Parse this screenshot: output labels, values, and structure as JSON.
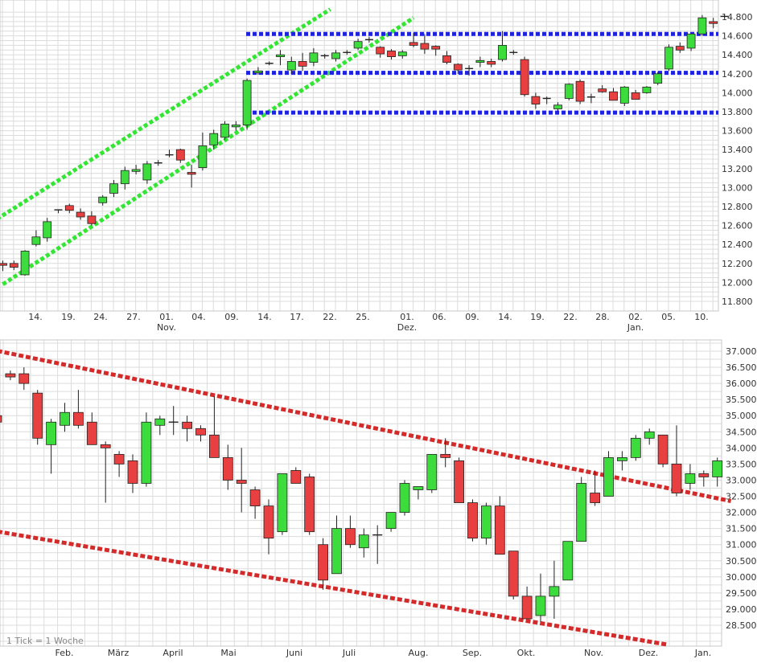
{
  "colors": {
    "up": "#3ddc3d",
    "down": "#e84040",
    "green_line": "#33e633",
    "blue_line": "#1f22e0",
    "red_line": "#d42a2a",
    "grid": "#dcdcdc"
  },
  "chart_data": [
    {
      "type": "candlestick",
      "title": "",
      "ylim": [
        11700,
        14900
      ],
      "y_ticks": [
        "11.800",
        "12.000",
        "12.200",
        "12.400",
        "12.600",
        "12.800",
        "13.000",
        "13.200",
        "13.400",
        "13.600",
        "13.800",
        "14.000",
        "14.200",
        "14.400",
        "14.600",
        "14.800"
      ],
      "day_labels": [
        "14.",
        "19.",
        "24.",
        "27.",
        "01.",
        "04.",
        "09.",
        "14.",
        "17.",
        "22.",
        "25.",
        "01.",
        "06.",
        "09.",
        "14.",
        "19.",
        "22.",
        "28.",
        "02.",
        "05.",
        "10."
      ],
      "month_labels": [
        "Nov.",
        "Dez.",
        "Jan."
      ],
      "candles": [
        [
          12200,
          12230,
          12120,
          12180
        ],
        [
          12200,
          12230,
          12130,
          12160
        ],
        [
          12080,
          12340,
          12070,
          12330
        ],
        [
          12400,
          12550,
          12380,
          12480
        ],
        [
          12470,
          12680,
          12430,
          12640
        ],
        [
          12760,
          12770,
          12730,
          12770
        ],
        [
          12810,
          12830,
          12730,
          12760
        ],
        [
          12740,
          12780,
          12660,
          12690
        ],
        [
          12700,
          12750,
          12600,
          12620
        ],
        [
          12840,
          12920,
          12810,
          12900
        ],
        [
          12940,
          13080,
          12900,
          13040
        ],
        [
          13040,
          13220,
          12980,
          13180
        ],
        [
          13170,
          13240,
          13140,
          13190
        ],
        [
          13080,
          13280,
          13040,
          13250
        ],
        [
          13260,
          13290,
          13230,
          13260
        ],
        [
          13340,
          13400,
          13320,
          13350
        ],
        [
          13400,
          13410,
          13260,
          13290
        ],
        [
          13160,
          13240,
          13000,
          13140
        ],
        [
          13210,
          13580,
          13180,
          13440
        ],
        [
          13450,
          13610,
          13400,
          13570
        ],
        [
          13530,
          13700,
          13500,
          13670
        ],
        [
          13640,
          13700,
          13600,
          13660
        ],
        [
          13660,
          14150,
          13610,
          14130
        ],
        [
          14210,
          14270,
          14190,
          14230
        ],
        [
          14310,
          14330,
          14290,
          14310
        ],
        [
          14380,
          14450,
          14290,
          14400
        ],
        [
          14240,
          14380,
          14200,
          14330
        ],
        [
          14330,
          14420,
          14230,
          14280
        ],
        [
          14320,
          14470,
          14280,
          14420
        ],
        [
          14390,
          14410,
          14360,
          14390
        ],
        [
          14360,
          14450,
          14330,
          14420
        ],
        [
          14420,
          14450,
          14400,
          14430
        ],
        [
          14470,
          14570,
          14450,
          14540
        ],
        [
          14560,
          14590,
          14530,
          14560
        ],
        [
          14480,
          14490,
          14370,
          14410
        ],
        [
          14440,
          14460,
          14350,
          14380
        ],
        [
          14390,
          14450,
          14360,
          14430
        ],
        [
          14530,
          14630,
          14480,
          14500
        ],
        [
          14520,
          14620,
          14410,
          14460
        ],
        [
          14490,
          14500,
          14390,
          14460
        ],
        [
          14390,
          14440,
          14300,
          14320
        ],
        [
          14300,
          14310,
          14200,
          14240
        ],
        [
          14250,
          14290,
          14180,
          14260
        ],
        [
          14320,
          14380,
          14270,
          14340
        ],
        [
          14330,
          14360,
          14270,
          14300
        ],
        [
          14350,
          14650,
          14330,
          14500
        ],
        [
          14430,
          14450,
          14400,
          14420
        ],
        [
          14350,
          14380,
          13960,
          13980
        ],
        [
          13960,
          14000,
          13830,
          13880
        ],
        [
          13940,
          13960,
          13880,
          13940
        ],
        [
          13830,
          13900,
          13800,
          13870
        ],
        [
          13940,
          14100,
          13920,
          14090
        ],
        [
          14120,
          14140,
          13880,
          13910
        ],
        [
          13950,
          13990,
          13890,
          13960
        ],
        [
          14040,
          14080,
          14000,
          14010
        ],
        [
          14010,
          14050,
          13930,
          13920
        ],
        [
          13890,
          14070,
          13860,
          14060
        ],
        [
          14000,
          14030,
          13940,
          13930
        ],
        [
          14000,
          14070,
          13990,
          14060
        ],
        [
          14100,
          14220,
          14080,
          14200
        ],
        [
          14250,
          14510,
          14230,
          14480
        ],
        [
          14490,
          14530,
          14420,
          14450
        ],
        [
          14470,
          14620,
          14440,
          14620
        ],
        [
          14620,
          14820,
          14600,
          14790
        ],
        [
          14750,
          14790,
          14680,
          14730
        ],
        [
          14800,
          14820,
          14790,
          14810
        ]
      ],
      "lines": {
        "green_upper": [
          [
            -2,
            12560
          ],
          [
            29.5,
            14880
          ]
        ],
        "green_lower": [
          [
            0,
            11980
          ],
          [
            37,
            14790
          ]
        ],
        "blue": [
          14620,
          14210,
          13790
        ]
      }
    },
    {
      "type": "candlestick",
      "title": "",
      "ylim": [
        28000,
        37300
      ],
      "y_ticks": [
        "28.500",
        "29.000",
        "29.500",
        "30.000",
        "30.500",
        "31.000",
        "31.500",
        "32.000",
        "32.500",
        "33.000",
        "33.500",
        "34.000",
        "34.500",
        "35.000",
        "35.500",
        "36.000",
        "36.500",
        "37.000"
      ],
      "month_labels": [
        "Feb.",
        "März",
        "April",
        "Mai",
        "Juni",
        "Juli",
        "Aug.",
        "Sep.",
        "Okt.",
        "Nov.",
        "Dez.",
        "Jan."
      ],
      "note": "1 Tick = 1 Woche",
      "candles": [
        [
          35000,
          35050,
          34700,
          34800
        ],
        [
          36300,
          36400,
          36100,
          36200
        ],
        [
          36300,
          36500,
          35800,
          36000
        ],
        [
          35700,
          35800,
          34100,
          34300
        ],
        [
          34100,
          34900,
          33200,
          34800
        ],
        [
          34700,
          35400,
          34500,
          35100
        ],
        [
          35100,
          35800,
          34600,
          34700
        ],
        [
          34800,
          35100,
          34100,
          34100
        ],
        [
          34100,
          34200,
          32300,
          34000
        ],
        [
          33800,
          33900,
          33100,
          33500
        ],
        [
          33600,
          33800,
          32600,
          32900
        ],
        [
          32900,
          35100,
          32800,
          34800
        ],
        [
          34700,
          35000,
          34400,
          34900
        ],
        [
          34800,
          35300,
          34400,
          34800
        ],
        [
          34800,
          35000,
          34200,
          34600
        ],
        [
          34600,
          34700,
          34200,
          34400
        ],
        [
          34400,
          35600,
          33700,
          33700
        ],
        [
          33700,
          34100,
          32700,
          33000
        ],
        [
          33000,
          34000,
          32000,
          32900
        ],
        [
          32700,
          32800,
          31800,
          32200
        ],
        [
          32200,
          32400,
          30700,
          31200
        ],
        [
          31400,
          33200,
          31300,
          33200
        ],
        [
          33300,
          33400,
          32900,
          32900
        ],
        [
          33100,
          33200,
          31300,
          31400
        ],
        [
          31000,
          31200,
          29600,
          29900
        ],
        [
          30100,
          31900,
          30100,
          31500
        ],
        [
          31500,
          31900,
          30900,
          31000
        ],
        [
          30900,
          31500,
          30600,
          31300
        ],
        [
          31300,
          31600,
          30400,
          31300
        ],
        [
          31500,
          32000,
          31400,
          32000
        ],
        [
          32000,
          33000,
          31900,
          32900
        ],
        [
          32700,
          32800,
          32400,
          32800
        ],
        [
          32700,
          33800,
          32600,
          33800
        ],
        [
          33800,
          34300,
          33400,
          33700
        ],
        [
          33600,
          33700,
          32300,
          32300
        ],
        [
          32300,
          32400,
          31100,
          31200
        ],
        [
          31200,
          32300,
          31000,
          32200
        ],
        [
          32200,
          32500,
          30700,
          30700
        ],
        [
          30800,
          30800,
          29300,
          29400
        ],
        [
          29400,
          29700,
          28700,
          28700
        ],
        [
          28800,
          30100,
          28600,
          29400
        ],
        [
          29400,
          30500,
          28700,
          29700
        ],
        [
          29900,
          31100,
          29900,
          31100
        ],
        [
          31100,
          33100,
          31100,
          32900
        ],
        [
          32600,
          33300,
          32200,
          32300
        ],
        [
          32500,
          33900,
          32500,
          33700
        ],
        [
          33600,
          33900,
          33300,
          33700
        ],
        [
          33700,
          34400,
          33600,
          34300
        ],
        [
          34300,
          34600,
          34100,
          34500
        ],
        [
          34400,
          34400,
          33400,
          33500
        ],
        [
          33500,
          34700,
          32500,
          32600
        ],
        [
          32900,
          33500,
          32700,
          33200
        ],
        [
          33200,
          33300,
          32800,
          33100
        ],
        [
          33100,
          33700,
          32800,
          33600
        ]
      ],
      "lines": {
        "red_upper": [
          [
            -1,
            37100
          ],
          [
            54,
            32350
          ]
        ],
        "red_lower": [
          [
            -1,
            31480
          ],
          [
            49.3,
            27900
          ]
        ]
      }
    }
  ]
}
